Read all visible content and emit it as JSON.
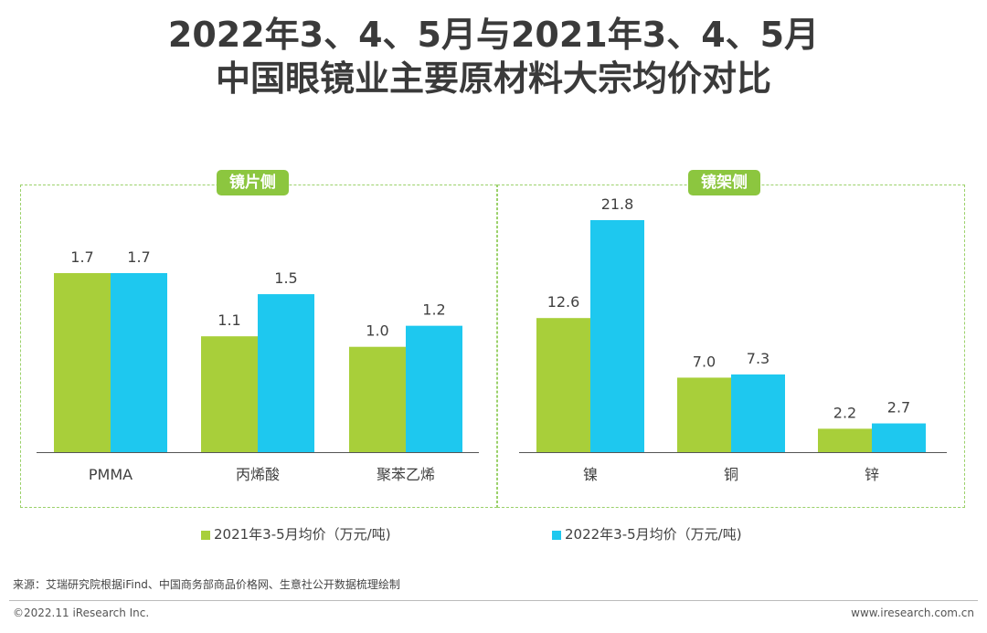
{
  "title": {
    "line1": "2022年3、4、5月与2021年3、4、5月",
    "line2": "中国眼镜业主要原材料大宗均价对比"
  },
  "legend": {
    "series_a": "2021年3-5月均价（万元/吨)",
    "series_b": "2022年3-5月均价（万元/吨)"
  },
  "colors": {
    "series_a": "#a8cf3a",
    "series_b": "#1ec8ef",
    "badge": "#8cc63f",
    "border": "#9bd16a"
  },
  "source": "来源：艾瑞研究院根据iFind、中国商务部商品价格网、生意社公开数据梳理绘制",
  "footer": {
    "left": "©2022.11 iResearch Inc.",
    "right": "www.iresearch.com.cn"
  },
  "chart_data": [
    {
      "type": "bar",
      "title": "镜片侧",
      "categories": [
        "PMMA",
        "丙烯酸",
        "聚苯乙烯"
      ],
      "series": [
        {
          "name": "2021年3-5月均价（万元/吨)",
          "values": [
            1.7,
            1.1,
            1.0
          ]
        },
        {
          "name": "2022年3-5月均价（万元/吨)",
          "values": [
            1.7,
            1.5,
            1.2
          ]
        }
      ],
      "ylim": [
        0,
        2.0
      ]
    },
    {
      "type": "bar",
      "title": "镜架侧",
      "categories": [
        "镍",
        "铜",
        "锌"
      ],
      "series": [
        {
          "name": "2021年3-5月均价（万元/吨)",
          "values": [
            12.6,
            7.0,
            2.2
          ]
        },
        {
          "name": "2022年3-5月均价（万元/吨)",
          "values": [
            21.8,
            7.3,
            2.7
          ]
        }
      ],
      "ylim": [
        0,
        21.8
      ]
    }
  ]
}
